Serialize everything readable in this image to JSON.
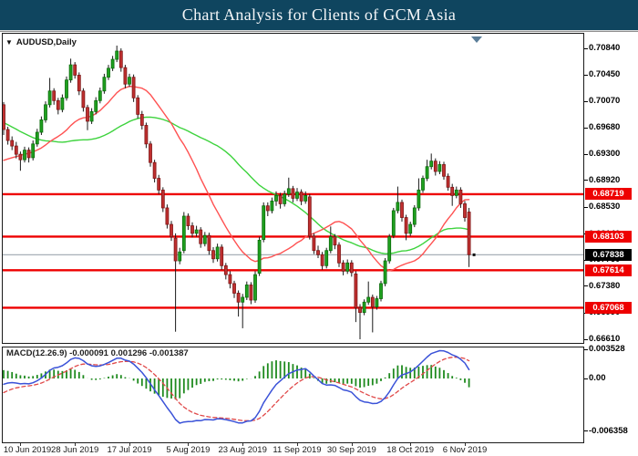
{
  "header": {
    "title": "Chart Analysis for Clients of GCM Asia"
  },
  "chart_window": {
    "symbol_label": "AUDUSD,Daily",
    "dropdown_icon": "▼"
  },
  "colors": {
    "title_bg": "#0f455f",
    "bull": "#1fa11f",
    "bull_edge": "#0b6b0b",
    "bear": "#c03030",
    "bear_edge": "#7d1515",
    "wick": "#1a1a1a",
    "ma_fast": "#ff5252",
    "ma_slow": "#3dd33d",
    "level_line": "#ee0000",
    "current_line": "#a8b0b8",
    "tag_red": "#ee0000",
    "tag_black": "#000000",
    "macd_main": "#3a52d8",
    "macd_signal": "#e04848",
    "macd_hist": "#1e8a1e",
    "shift_marker": "#5b7e99"
  },
  "chart_data": {
    "type": "candlestick",
    "symbol": "AUDUSD",
    "timeframe": "Daily",
    "ylim": [
      0.6661,
      0.7084
    ],
    "price_axis_ticks": [
      "0.70840",
      "0.70450",
      "0.70070",
      "0.69680",
      "0.69300",
      "0.68920",
      "0.68530",
      "0.68140",
      "0.67760",
      "0.67380",
      "0.66990",
      "0.66610"
    ],
    "horizontal_lines": [
      {
        "price": 0.68719,
        "label": "0.68719"
      },
      {
        "price": 0.68103,
        "label": "0.68103"
      },
      {
        "price": 0.67614,
        "label": "0.67614"
      },
      {
        "price": 0.67068,
        "label": "0.67068"
      }
    ],
    "current_price": {
      "price": 0.67838,
      "label": "0.67838"
    },
    "x_labels": [
      "10 Jun 2019",
      "28 Jun 2019",
      "17 Jul 2019",
      "5 Aug 2019",
      "23 Aug 2019",
      "11 Sep 2019",
      "30 Sep 2019",
      "18 Oct 2019",
      "6 Nov 2019"
    ],
    "x_label_indices": [
      4,
      17,
      30,
      44,
      57,
      70,
      83,
      97,
      110
    ],
    "pre_closes": [
      0.7085,
      0.709,
      0.7082,
      0.7075,
      0.708,
      0.707,
      0.7062,
      0.7068,
      0.7055,
      0.7048,
      0.7052,
      0.704,
      0.703,
      0.7035,
      0.7022,
      0.7015,
      0.7005,
      0.701,
      0.6995,
      0.6985,
      0.6975,
      0.696,
      0.695,
      0.694,
      0.693,
      0.692,
      0.691,
      0.6905,
      0.6898,
      0.689,
      0.6895,
      0.6905,
      0.69,
      0.691,
      0.692,
      0.6915,
      0.6925,
      0.693,
      0.6922,
      0.6928,
      0.6935,
      0.693,
      0.694,
      0.6945,
      0.6955
    ],
    "ohlc": [
      [
        0.7002,
        0.7006,
        0.6958,
        0.6966
      ],
      [
        0.6966,
        0.697,
        0.6944,
        0.695
      ],
      [
        0.695,
        0.6956,
        0.6936,
        0.6942
      ],
      [
        0.6942,
        0.6948,
        0.6924,
        0.693
      ],
      [
        0.693,
        0.6934,
        0.6906,
        0.6922
      ],
      [
        0.6922,
        0.6941,
        0.6918,
        0.6936
      ],
      [
        0.6936,
        0.694,
        0.6918,
        0.6925
      ],
      [
        0.6925,
        0.695,
        0.6921,
        0.6945
      ],
      [
        0.6945,
        0.6967,
        0.6941,
        0.6962
      ],
      [
        0.6962,
        0.6985,
        0.6958,
        0.698
      ],
      [
        0.698,
        0.7007,
        0.6976,
        0.7002
      ],
      [
        0.7002,
        0.7041,
        0.6998,
        0.7022
      ],
      [
        0.7022,
        0.7026,
        0.7002,
        0.7008
      ],
      [
        0.7008,
        0.7012,
        0.6988,
        0.6995
      ],
      [
        0.6995,
        0.7017,
        0.6991,
        0.7012
      ],
      [
        0.7012,
        0.7043,
        0.7008,
        0.7038
      ],
      [
        0.7038,
        0.7069,
        0.7034,
        0.706
      ],
      [
        0.706,
        0.7064,
        0.704,
        0.7045
      ],
      [
        0.7045,
        0.7049,
        0.7016,
        0.7022
      ],
      [
        0.7022,
        0.7026,
        0.6992,
        0.6998
      ],
      [
        0.6998,
        0.7002,
        0.6965,
        0.6978
      ],
      [
        0.6978,
        0.6997,
        0.6974,
        0.6992
      ],
      [
        0.6992,
        0.7013,
        0.6988,
        0.7008
      ],
      [
        0.7008,
        0.7027,
        0.7004,
        0.7022
      ],
      [
        0.7022,
        0.7047,
        0.7018,
        0.7042
      ],
      [
        0.7042,
        0.706,
        0.7038,
        0.7055
      ],
      [
        0.7055,
        0.7073,
        0.7051,
        0.7068
      ],
      [
        0.7068,
        0.7088,
        0.7064,
        0.708
      ],
      [
        0.708,
        0.7084,
        0.705,
        0.7056
      ],
      [
        0.7056,
        0.706,
        0.7026,
        0.7032
      ],
      [
        0.7032,
        0.7047,
        0.7028,
        0.7042
      ],
      [
        0.7042,
        0.7046,
        0.7006,
        0.7012
      ],
      [
        0.7012,
        0.7016,
        0.6982,
        0.6988
      ],
      [
        0.6988,
        0.6993,
        0.6966,
        0.6972
      ],
      [
        0.6972,
        0.6976,
        0.6939,
        0.6945
      ],
      [
        0.6945,
        0.6949,
        0.6912,
        0.6918
      ],
      [
        0.6918,
        0.6922,
        0.6889,
        0.6895
      ],
      [
        0.6895,
        0.69,
        0.6872,
        0.6878
      ],
      [
        0.6878,
        0.6882,
        0.6846,
        0.6852
      ],
      [
        0.6852,
        0.6857,
        0.6822,
        0.6828
      ],
      [
        0.6828,
        0.6833,
        0.6804,
        0.681
      ],
      [
        0.6808,
        0.6815,
        0.6672,
        0.6775
      ],
      [
        0.6775,
        0.6794,
        0.677,
        0.6788
      ],
      [
        0.679,
        0.6846,
        0.6786,
        0.684
      ],
      [
        0.684,
        0.6844,
        0.682,
        0.6826
      ],
      [
        0.6826,
        0.6831,
        0.6809,
        0.6815
      ],
      [
        0.6815,
        0.6826,
        0.681,
        0.682
      ],
      [
        0.682,
        0.6824,
        0.6794,
        0.68
      ],
      [
        0.68,
        0.6817,
        0.6796,
        0.6812
      ],
      [
        0.6812,
        0.6816,
        0.6784,
        0.679
      ],
      [
        0.679,
        0.6795,
        0.6772,
        0.6778
      ],
      [
        0.6778,
        0.68,
        0.6774,
        0.6795
      ],
      [
        0.6795,
        0.6799,
        0.6762,
        0.6768
      ],
      [
        0.6768,
        0.6772,
        0.6748,
        0.6755
      ],
      [
        0.6755,
        0.676,
        0.6735,
        0.6742
      ],
      [
        0.6742,
        0.6746,
        0.6721,
        0.6728
      ],
      [
        0.6728,
        0.6732,
        0.6694,
        0.6715
      ],
      [
        0.6715,
        0.6727,
        0.6677,
        0.6722
      ],
      [
        0.6722,
        0.6745,
        0.6718,
        0.674
      ],
      [
        0.674,
        0.6744,
        0.6712,
        0.6718
      ],
      [
        0.6718,
        0.676,
        0.6714,
        0.6755
      ],
      [
        0.6757,
        0.681,
        0.6753,
        0.6805
      ],
      [
        0.6806,
        0.686,
        0.6802,
        0.6855
      ],
      [
        0.6855,
        0.686,
        0.684,
        0.6848
      ],
      [
        0.6848,
        0.6867,
        0.6844,
        0.6862
      ],
      [
        0.6862,
        0.6876,
        0.6855,
        0.687
      ],
      [
        0.687,
        0.6874,
        0.6851,
        0.6858
      ],
      [
        0.6858,
        0.6877,
        0.6854,
        0.6872
      ],
      [
        0.6872,
        0.6896,
        0.6868,
        0.688
      ],
      [
        0.688,
        0.6884,
        0.686,
        0.6866
      ],
      [
        0.6866,
        0.6881,
        0.6862,
        0.6875
      ],
      [
        0.6875,
        0.6879,
        0.6856,
        0.6862
      ],
      [
        0.6862,
        0.6876,
        0.6858,
        0.687
      ],
      [
        0.6868,
        0.6872,
        0.6806,
        0.6811
      ],
      [
        0.6811,
        0.6815,
        0.6785,
        0.679
      ],
      [
        0.679,
        0.6797,
        0.6779,
        0.6784
      ],
      [
        0.6784,
        0.6788,
        0.6762,
        0.6768
      ],
      [
        0.6768,
        0.6794,
        0.6764,
        0.679
      ],
      [
        0.679,
        0.6825,
        0.6786,
        0.681
      ],
      [
        0.681,
        0.6814,
        0.6792,
        0.6798
      ],
      [
        0.6798,
        0.6802,
        0.6766,
        0.6772
      ],
      [
        0.6772,
        0.6776,
        0.6754,
        0.676
      ],
      [
        0.676,
        0.6777,
        0.6756,
        0.6772
      ],
      [
        0.6772,
        0.6776,
        0.6752,
        0.6758
      ],
      [
        0.6756,
        0.676,
        0.6686,
        0.6707
      ],
      [
        0.6707,
        0.6712,
        0.6661,
        0.67
      ],
      [
        0.67,
        0.6719,
        0.6696,
        0.6715
      ],
      [
        0.6715,
        0.6745,
        0.6711,
        0.6722
      ],
      [
        0.6722,
        0.6726,
        0.6671,
        0.6708
      ],
      [
        0.6708,
        0.6724,
        0.6704,
        0.672
      ],
      [
        0.672,
        0.6746,
        0.6716,
        0.6742
      ],
      [
        0.6742,
        0.6779,
        0.6738,
        0.6775
      ],
      [
        0.6775,
        0.6814,
        0.6771,
        0.681
      ],
      [
        0.6812,
        0.6852,
        0.6808,
        0.6848
      ],
      [
        0.6848,
        0.6883,
        0.6844,
        0.686
      ],
      [
        0.686,
        0.6864,
        0.6832,
        0.6838
      ],
      [
        0.6838,
        0.6842,
        0.6805,
        0.6815
      ],
      [
        0.6815,
        0.6832,
        0.6811,
        0.6828
      ],
      [
        0.6828,
        0.6856,
        0.6824,
        0.6852
      ],
      [
        0.6852,
        0.6895,
        0.6848,
        0.6878
      ],
      [
        0.6878,
        0.6899,
        0.6874,
        0.6895
      ],
      [
        0.6895,
        0.6922,
        0.6891,
        0.6912
      ],
      [
        0.6912,
        0.6931,
        0.6908,
        0.692
      ],
      [
        0.692,
        0.6924,
        0.6899,
        0.6905
      ],
      [
        0.6905,
        0.692,
        0.6901,
        0.6915
      ],
      [
        0.6915,
        0.6919,
        0.6893,
        0.6898
      ],
      [
        0.6898,
        0.6902,
        0.6877,
        0.6882
      ],
      [
        0.6882,
        0.6887,
        0.6855,
        0.687
      ],
      [
        0.687,
        0.6883,
        0.6866,
        0.6878
      ],
      [
        0.6878,
        0.6882,
        0.6852,
        0.6858
      ],
      [
        0.6858,
        0.6862,
        0.6832,
        0.6838
      ],
      [
        0.6846,
        0.6852,
        0.6766,
        0.6784
      ]
    ],
    "indicators": {
      "ma_fast_period": 20,
      "ma_slow_period": 45,
      "macd": {
        "fast": 12,
        "slow": 26,
        "signal": 9,
        "label": "MACD(12.26.9) -0.000091 0.001296 -0.001387",
        "axis_ticks": [
          "0.003528",
          "0.00",
          "-0.006358"
        ],
        "ylim": [
          -0.006358,
          0.003528
        ]
      }
    }
  }
}
